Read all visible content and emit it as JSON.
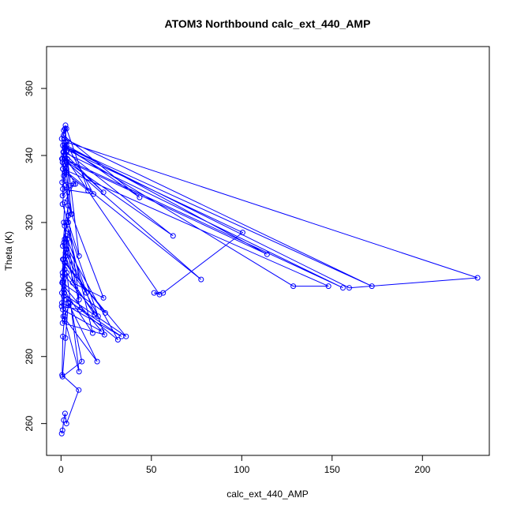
{
  "chart_data": {
    "type": "line",
    "title": "ATOM3 Northbound calc_ext_440_AMP",
    "xlabel": "calc_ext_440_AMP",
    "ylabel": "Theta (K)",
    "xlim": [
      -8,
      237
    ],
    "ylim": [
      250.5,
      372.5
    ],
    "xticks": [
      0,
      50,
      100,
      150,
      200
    ],
    "yticks": [
      260,
      280,
      300,
      320,
      340,
      360
    ],
    "grid": false,
    "color": "#0000ff",
    "series": [
      {
        "x": [
          0.4,
          0.8,
          1.5,
          2.2,
          3.0,
          9.8,
          0.6,
          1.0,
          2.0,
          5.0,
          11.5,
          0.8,
          2.5,
          4.0,
          20.0,
          1.2,
          1.8,
          3.2,
          10.0,
          2.0,
          3.0,
          33.5,
          0.5,
          1.0,
          2.5,
          4.0,
          24.0,
          0.8,
          1.6,
          22.5,
          1.0,
          2.0,
          36.0,
          0.5,
          1.0,
          3.0,
          31.5,
          1.5,
          2.0,
          3.5,
          10.5,
          0.4,
          1.0,
          2.5,
          20.5,
          0.8,
          1.6,
          3.0,
          17.5,
          1.5,
          2.5,
          24.5,
          0.6,
          1.4,
          3.0,
          18.5,
          2.0,
          3.0,
          14.0,
          1.0,
          2.0,
          4.0,
          10.0,
          1.0,
          2.0,
          4.0,
          23.5,
          6.5,
          1.5,
          2.0,
          7.0,
          0.8,
          1.5,
          3.0,
          77.5,
          1.0,
          3.0,
          62.0,
          0.8,
          2.0,
          43.5,
          1.4,
          2.2,
          5.5,
          0.8,
          2.0,
          100.5,
          56.5,
          51.5,
          54.5,
          1.5,
          3.0,
          114.0,
          0.5,
          2.0,
          128.5,
          148.0,
          1.0,
          2.0,
          156.0,
          1.5,
          3.0,
          230.5,
          159.5,
          1.0,
          172.0,
          2.0,
          3.0,
          15.0,
          2.0,
          3.5,
          23.5,
          1.2,
          2.5,
          18.0,
          1.0,
          3.0,
          8.0,
          0.6,
          1.5,
          3.0,
          10.0,
          0.8,
          2.0,
          6.0,
          0.4,
          1.5,
          2.5,
          4.0
        ],
        "y": [
          257.0,
          258.0,
          261.0,
          263.0,
          260.0,
          270.0,
          274.5,
          286.0,
          292.0,
          296.0,
          278.5,
          274.0,
          285.5,
          296.0,
          278.5,
          292.0,
          299.0,
          305.0,
          275.5,
          291.0,
          297.0,
          286.0,
          296.0,
          302.0,
          310.0,
          318.0,
          286.5,
          290.0,
          301.0,
          287.5,
          294.0,
          308.0,
          286.0,
          299.0,
          304.0,
          313.0,
          285.0,
          298.0,
          306.0,
          315.0,
          294.0,
          295.0,
          302.5,
          311.0,
          292.0,
          305.0,
          314.0,
          320.0,
          287.0,
          300.0,
          308.0,
          293.0,
          302.0,
          309.0,
          316.0,
          292.5,
          306.0,
          312.0,
          299.0,
          309.0,
          315.0,
          322.0,
          297.0,
          313.0,
          319.0,
          325.0,
          297.5,
          302.0,
          320.0,
          326.0,
          331.5,
          328.0,
          334.0,
          338.0,
          303.0,
          336.0,
          341.0,
          316.0,
          339.0,
          343.0,
          327.5,
          346.0,
          348.0,
          322.5,
          338.0,
          342.0,
          317.0,
          299.0,
          299.0,
          298.5,
          340.0,
          343.0,
          310.5,
          339.0,
          342.5,
          301.0,
          301.0,
          336.0,
          339.0,
          300.5,
          341.0,
          344.0,
          303.5,
          300.5,
          343.0,
          301.0,
          345.0,
          348.0,
          329.5,
          335.0,
          339.0,
          329.0,
          341.0,
          344.0,
          328.5,
          330.0,
          336.0,
          331.5,
          332.0,
          337.5,
          341.5,
          310.0,
          325.5,
          331.0,
          322.5,
          345.0,
          347.5,
          349.0,
          320.0
        ]
      }
    ]
  }
}
